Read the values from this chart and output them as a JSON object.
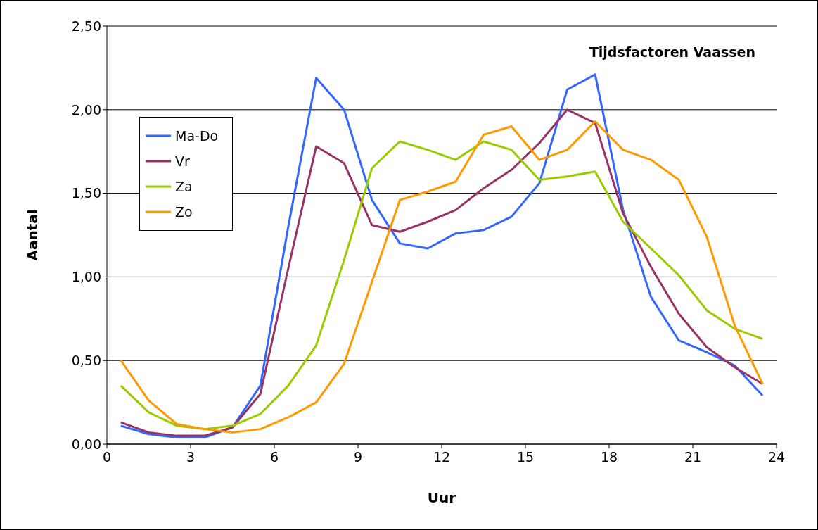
{
  "chart_data": {
    "type": "line",
    "title": "Tijdsfactoren Vaassen",
    "xlabel": "Uur",
    "ylabel": "Aantal",
    "x": [
      0.5,
      1.5,
      2.5,
      3.5,
      4.5,
      5.5,
      6.5,
      7.5,
      8.5,
      9.5,
      10.5,
      11.5,
      12.5,
      13.5,
      14.5,
      15.5,
      16.5,
      17.5,
      18.5,
      19.5,
      20.5,
      21.5,
      22.5,
      23.5
    ],
    "series": [
      {
        "name": "Ma-Do",
        "color": "#3366ff",
        "values": [
          0.11,
          0.06,
          0.04,
          0.04,
          0.1,
          0.35,
          1.3,
          2.19,
          2.0,
          1.46,
          1.2,
          1.17,
          1.26,
          1.28,
          1.36,
          1.56,
          2.12,
          2.21,
          1.4,
          0.88,
          0.62,
          0.55,
          0.47,
          0.29
        ]
      },
      {
        "name": "Vr",
        "color": "#993366",
        "values": [
          0.13,
          0.07,
          0.05,
          0.05,
          0.1,
          0.3,
          1.05,
          1.78,
          1.68,
          1.31,
          1.27,
          1.33,
          1.4,
          1.53,
          1.64,
          1.8,
          2.0,
          1.92,
          1.38,
          1.06,
          0.78,
          0.58,
          0.46,
          0.36
        ]
      },
      {
        "name": "Za",
        "color": "#99cc00",
        "values": [
          0.35,
          0.19,
          0.11,
          0.09,
          0.11,
          0.18,
          0.35,
          0.59,
          1.1,
          1.65,
          1.81,
          1.76,
          1.7,
          1.81,
          1.76,
          1.58,
          1.6,
          1.63,
          1.33,
          1.17,
          1.01,
          0.8,
          0.69,
          0.63
        ]
      },
      {
        "name": "Zo",
        "color": "#ff9900",
        "values": [
          0.5,
          0.26,
          0.12,
          0.09,
          0.07,
          0.09,
          0.16,
          0.25,
          0.48,
          0.97,
          1.46,
          1.51,
          1.57,
          1.85,
          1.9,
          1.7,
          1.76,
          1.93,
          1.76,
          1.7,
          1.58,
          1.24,
          0.71,
          0.36
        ]
      }
    ],
    "xlim": [
      0,
      24
    ],
    "xticks": [
      0,
      3,
      6,
      9,
      12,
      15,
      18,
      21,
      24
    ],
    "ylim": [
      0,
      2.5
    ],
    "yticks": [
      {
        "value": 0,
        "label": "0,00"
      },
      {
        "value": 0.5,
        "label": "0,50"
      },
      {
        "value": 1,
        "label": "1,00"
      },
      {
        "value": 1.5,
        "label": "1,50"
      },
      {
        "value": 2,
        "label": "2,00"
      },
      {
        "value": 2.5,
        "label": "2,50"
      }
    ],
    "grid": "y",
    "legend": "top left",
    "marker": "none",
    "line_style": "solid"
  }
}
